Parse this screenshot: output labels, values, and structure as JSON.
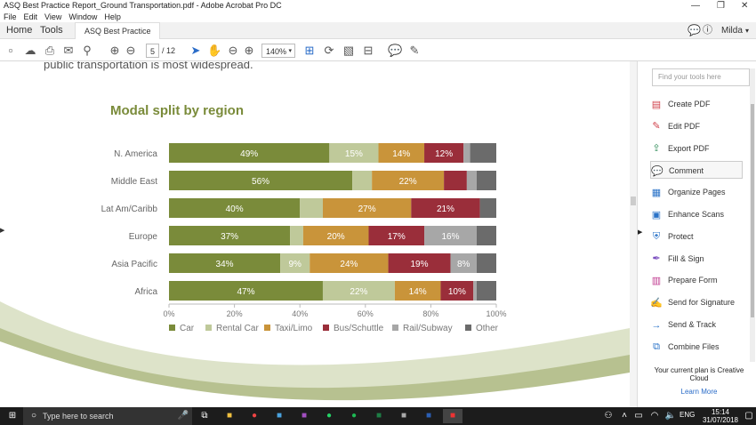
{
  "window": {
    "title": "ASQ Best Practice Report_Ground Transportation.pdf - Adobe Acrobat Pro DC"
  },
  "menu": [
    "File",
    "Edit",
    "View",
    "Window",
    "Help"
  ],
  "tabs": {
    "home": "Home",
    "tools": "Tools",
    "doc": "ASQ Best Practice R..."
  },
  "user": "Milda",
  "page": {
    "current": "5",
    "total": "/ 12"
  },
  "zoom": "140%",
  "document": {
    "intro_text": "public transportation is most widespread."
  },
  "colors": {
    "Car": "#7a8b3a",
    "Rental Car": "#bfc99a",
    "Taxi/Limo": "#c9943a",
    "Bus/Schuttle": "#9a2e3a",
    "Rail/Subway": "#a7a7a7",
    "Other": "#6b6b6b",
    "title": "#7a8b3a"
  },
  "chart_data": {
    "type": "bar",
    "orientation": "horizontal-stacked",
    "title": "Modal split by region",
    "categories": [
      "N. America",
      "Middle East",
      "Lat Am/Caribb",
      "Europe",
      "Asia Pacific",
      "Africa"
    ],
    "series": [
      {
        "name": "Car",
        "values": [
          49,
          56,
          40,
          37,
          34,
          47
        ]
      },
      {
        "name": "Rental Car",
        "values": [
          15,
          6,
          7,
          4,
          9,
          22
        ]
      },
      {
        "name": "Taxi/Limo",
        "values": [
          14,
          22,
          27,
          20,
          24,
          14
        ]
      },
      {
        "name": "Bus/Schuttle",
        "values": [
          12,
          7,
          21,
          17,
          19,
          10
        ]
      },
      {
        "name": "Rail/Subway",
        "values": [
          2,
          3,
          0,
          16,
          8,
          1
        ]
      },
      {
        "name": "Other",
        "values": [
          8,
          6,
          5,
          6,
          6,
          6
        ]
      }
    ],
    "labels": [
      [
        "49%",
        "15%",
        "14%",
        "12%",
        "",
        ""
      ],
      [
        "56%",
        "",
        "22%",
        "",
        "",
        ""
      ],
      [
        "40%",
        "",
        "27%",
        "21%",
        "",
        ""
      ],
      [
        "37%",
        "",
        "20%",
        "17%",
        "16%",
        ""
      ],
      [
        "34%",
        "9%",
        "24%",
        "19%",
        "8%",
        ""
      ],
      [
        "47%",
        "22%",
        "14%",
        "10%",
        "",
        ""
      ]
    ],
    "xticks": [
      "0%",
      "20%",
      "40%",
      "60%",
      "80%",
      "100%"
    ],
    "xlim": [
      0,
      100
    ],
    "legend_position": "bottom"
  },
  "tools": [
    {
      "label": "Create PDF",
      "icon": "create-pdf-icon",
      "color": "#d0414b",
      "glyph": "▤"
    },
    {
      "label": "Edit PDF",
      "icon": "edit-pdf-icon",
      "color": "#d0414b",
      "glyph": "✎"
    },
    {
      "label": "Export PDF",
      "icon": "export-pdf-icon",
      "color": "#2e8b57",
      "glyph": "⇪"
    },
    {
      "label": "Comment",
      "icon": "comment-icon",
      "color": "#e6b800",
      "glyph": "💬"
    },
    {
      "label": "Organize Pages",
      "icon": "organize-pages-icon",
      "color": "#2a73c8",
      "glyph": "▦"
    },
    {
      "label": "Enhance Scans",
      "icon": "enhance-scans-icon",
      "color": "#2a73c8",
      "glyph": "▣"
    },
    {
      "label": "Protect",
      "icon": "protect-icon",
      "color": "#2a73c8",
      "glyph": "⛨"
    },
    {
      "label": "Fill & Sign",
      "icon": "fill-sign-icon",
      "color": "#7b4fc0",
      "glyph": "✒"
    },
    {
      "label": "Prepare Form",
      "icon": "prepare-form-icon",
      "color": "#c0398f",
      "glyph": "▥"
    },
    {
      "label": "Send for Signature",
      "icon": "send-signature-icon",
      "color": "#2a73c8",
      "glyph": "✍"
    },
    {
      "label": "Send & Track",
      "icon": "send-track-icon",
      "color": "#2a73c8",
      "glyph": "→"
    },
    {
      "label": "Combine Files",
      "icon": "combine-files-icon",
      "color": "#2a73c8",
      "glyph": "⧉"
    }
  ],
  "plan": {
    "text": "Your current plan is Creative Cloud",
    "link": "Learn More"
  },
  "search": {
    "placeholder": "Find your tools here"
  },
  "taskbar": {
    "search_placeholder": "Type here to search",
    "lang": "ENG",
    "time": "15:14",
    "date": "31/07/2018"
  }
}
